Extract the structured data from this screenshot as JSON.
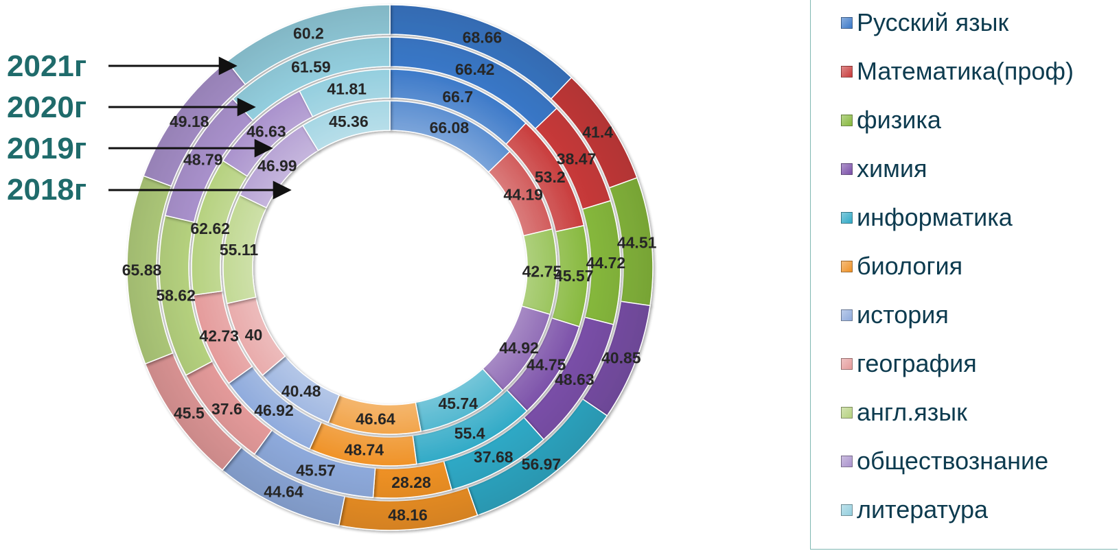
{
  "chart_data": {
    "type": "doughnut",
    "categories": [
      "Русский язык",
      "Математика(проф)",
      "физика",
      "химия",
      "информатика",
      "биология",
      "история",
      "география",
      "англ.язык",
      "обществознание",
      "литература"
    ],
    "colors": [
      "#3a78c8",
      "#c83a3a",
      "#86b83c",
      "#7a4fa8",
      "#2fa9c6",
      "#ef9125",
      "#8eaadc",
      "#e49a9a",
      "#b5d17e",
      "#a991cc",
      "#93cede"
    ],
    "series": [
      {
        "name": "2021г",
        "values": [
          68.66,
          41.4,
          44.51,
          40.85,
          56.97,
          48.16,
          44.64,
          45.5,
          65.88,
          49.18,
          60.2
        ]
      },
      {
        "name": "2020г",
        "values": [
          66.42,
          38.47,
          44.72,
          48.63,
          37.68,
          28.28,
          45.57,
          37.6,
          58.62,
          48.79,
          61.59
        ]
      },
      {
        "name": "2019г",
        "values": [
          66.7,
          53.2,
          45.57,
          44.75,
          55.4,
          48.74,
          46.92,
          42.73,
          62.62,
          46.63,
          41.81
        ]
      },
      {
        "name": "2018г",
        "values": [
          66.08,
          44.19,
          42.75,
          44.92,
          45.74,
          46.64,
          40.48,
          40,
          55.11,
          46.99,
          45.36
        ]
      }
    ],
    "legend_position": "right"
  }
}
